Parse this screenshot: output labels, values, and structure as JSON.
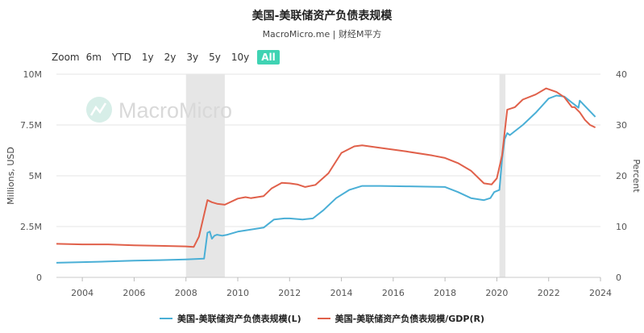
{
  "title": "美国-美联储资产负债表规模",
  "subtitle": "MacroMicro.me | 财经M平方",
  "zoom": {
    "label": "Zoom",
    "options": [
      "6m",
      "YTD",
      "1y",
      "2y",
      "3y",
      "5y",
      "10y",
      "All"
    ],
    "selected": "All"
  },
  "watermark": "MacroMicro",
  "colors": {
    "left_series": "#4aafd6",
    "right_series": "#e0604a",
    "recession": "#e6e6e6",
    "active_zoom": "#3fd3b3"
  },
  "chart_data": {
    "type": "line",
    "xlim": [
      2003.0,
      2024.0
    ],
    "x_ticks": [
      "2004",
      "2006",
      "2008",
      "2010",
      "2012",
      "2014",
      "2016",
      "2018",
      "2020",
      "2022",
      "2024"
    ],
    "y_left": {
      "label": "Millions, USD",
      "ticks": [
        "0",
        "2.5M",
        "5M",
        "7.5M",
        "10M"
      ],
      "range": [
        0,
        10000000
      ]
    },
    "y_right": {
      "label": "Percent",
      "ticks": [
        "0",
        "10",
        "20",
        "30",
        "40"
      ],
      "range": [
        0,
        40
      ]
    },
    "recession_bands": [
      [
        2008.0,
        2009.5
      ],
      [
        2020.1,
        2020.33
      ]
    ],
    "series": [
      {
        "name": "美国-美联储资产负债表规模(L)",
        "axis": "left",
        "x": [
          2003.0,
          2004.0,
          2005.0,
          2006.0,
          2007.0,
          2008.0,
          2008.7,
          2008.83,
          2008.92,
          2009.0,
          2009.1,
          2009.2,
          2009.4,
          2009.6,
          2010.0,
          2010.5,
          2011.0,
          2011.4,
          2011.8,
          2012.0,
          2012.5,
          2012.9,
          2013.3,
          2013.8,
          2014.3,
          2014.8,
          2015.5,
          2016.5,
          2017.5,
          2018.0,
          2018.5,
          2019.0,
          2019.5,
          2019.75,
          2019.9,
          2020.1,
          2020.2,
          2020.3,
          2020.4,
          2020.5,
          2021.0,
          2021.5,
          2022.0,
          2022.3,
          2022.6,
          2022.9,
          2023.0,
          2023.15,
          2023.2,
          2023.5,
          2023.8
        ],
        "y": [
          720000,
          750000,
          780000,
          820000,
          850000,
          880000,
          920000,
          2200000,
          2250000,
          1900000,
          2050000,
          2100000,
          2050000,
          2100000,
          2250000,
          2350000,
          2450000,
          2850000,
          2900000,
          2900000,
          2850000,
          2900000,
          3300000,
          3900000,
          4300000,
          4500000,
          4500000,
          4480000,
          4460000,
          4450000,
          4200000,
          3900000,
          3800000,
          3900000,
          4200000,
          4300000,
          5800000,
          6800000,
          7100000,
          7000000,
          7500000,
          8100000,
          8800000,
          8950000,
          8900000,
          8600000,
          8500000,
          8350000,
          8700000,
          8300000,
          7900000
        ]
      },
      {
        "name": "美国-美联储资产负债表规模/GDP(R)",
        "axis": "right",
        "x": [
          2003.0,
          2004.0,
          2005.0,
          2006.0,
          2007.0,
          2008.0,
          2008.3,
          2008.5,
          2008.83,
          2009.0,
          2009.2,
          2009.5,
          2010.0,
          2010.3,
          2010.5,
          2011.0,
          2011.3,
          2011.7,
          2012.0,
          2012.3,
          2012.6,
          2013.0,
          2013.5,
          2014.0,
          2014.5,
          2014.8,
          2015.5,
          2016.5,
          2017.5,
          2018.0,
          2018.5,
          2019.0,
          2019.5,
          2019.8,
          2020.0,
          2020.2,
          2020.4,
          2020.7,
          2021.0,
          2021.5,
          2021.9,
          2022.3,
          2022.6,
          2022.9,
          2023.0,
          2023.2,
          2023.4,
          2023.6,
          2023.8
        ],
        "y": [
          6.6,
          6.5,
          6.5,
          6.3,
          6.2,
          6.1,
          6.0,
          8.0,
          15.2,
          14.8,
          14.5,
          14.3,
          15.5,
          15.8,
          15.6,
          16.0,
          17.5,
          18.6,
          18.5,
          18.3,
          17.8,
          18.2,
          20.5,
          24.5,
          25.8,
          26.0,
          25.5,
          24.8,
          24.0,
          23.5,
          22.5,
          21.0,
          18.5,
          18.3,
          19.5,
          24.0,
          33.0,
          33.5,
          35.0,
          36.0,
          37.2,
          36.5,
          35.5,
          33.5,
          33.5,
          32.5,
          31.0,
          30.0,
          29.5
        ]
      }
    ]
  },
  "legend": [
    "美国-美联储资产负债表规模(L)",
    "美国-美联储资产负债表规模/GDP(R)"
  ]
}
